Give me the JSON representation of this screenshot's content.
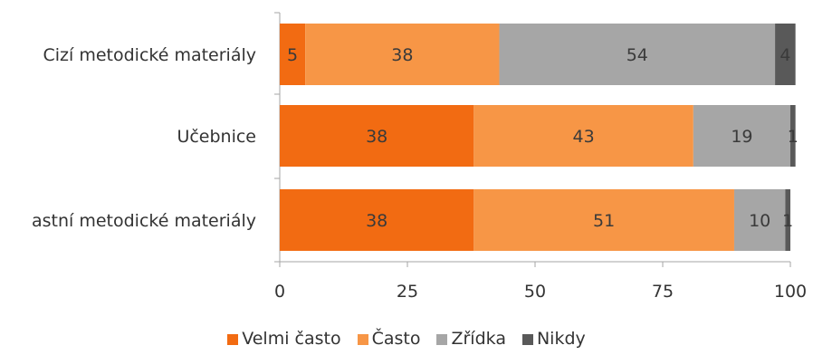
{
  "chart_data": {
    "type": "bar",
    "orientation": "horizontal",
    "stacked": true,
    "categories": [
      "Cizí metodické materiály",
      "Učebnice",
      "astní metodické materiály"
    ],
    "series": [
      {
        "name": "Velmi často",
        "color": "#f26b12",
        "values": [
          5,
          38,
          38
        ]
      },
      {
        "name": "Často",
        "color": "#f79646",
        "values": [
          38,
          43,
          51
        ]
      },
      {
        "name": "Zřídka",
        "color": "#a6a6a6",
        "values": [
          54,
          19,
          10
        ]
      },
      {
        "name": "Nikdy",
        "color": "#595959",
        "values": [
          4,
          1,
          1
        ]
      }
    ],
    "xlim": [
      0,
      100
    ],
    "xticks": [
      0,
      25,
      50,
      75,
      100
    ],
    "grid": false,
    "legend_position": "bottom"
  }
}
